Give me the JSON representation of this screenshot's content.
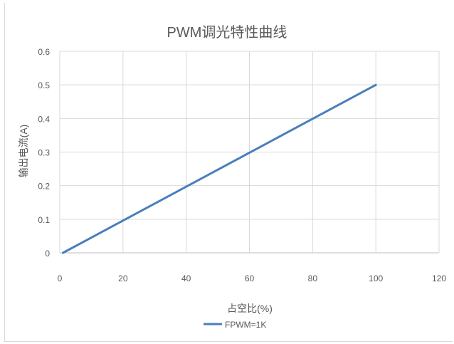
{
  "chart_data": {
    "type": "scatter",
    "title": "PWM调光特性曲线",
    "xlabel": "占空比(%)",
    "ylabel": "输出电流(A)",
    "xlim": [
      0,
      120
    ],
    "ylim": [
      0,
      0.6
    ],
    "x_ticks": [
      0,
      20,
      40,
      60,
      80,
      100,
      120
    ],
    "y_ticks": [
      0,
      0.1,
      0.2,
      0.3,
      0.4,
      0.5,
      0.6
    ],
    "x_tick_labels": [
      "0",
      "20",
      "40",
      "60",
      "80",
      "100",
      "120"
    ],
    "y_tick_labels": [
      "0",
      "0.1",
      "0.2",
      "0.3",
      "0.4",
      "0.5",
      "0.6"
    ],
    "grid": true,
    "legend_position": "bottom",
    "series": [
      {
        "name": "FPWM=1K",
        "color": "#4a7ebb",
        "x": [
          1,
          100
        ],
        "y": [
          0,
          0.5
        ]
      }
    ]
  }
}
